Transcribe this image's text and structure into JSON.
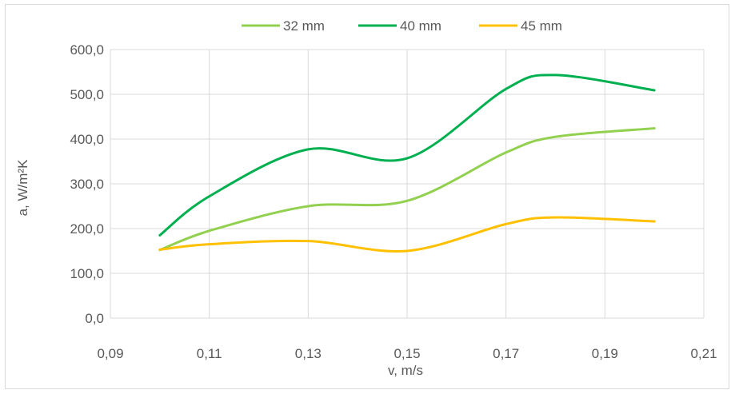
{
  "chart_data": {
    "type": "line",
    "title": "",
    "xlabel": "v, m/s",
    "ylabel": "a, W/m²K",
    "xlim": [
      0.09,
      0.21
    ],
    "ylim": [
      0,
      600
    ],
    "x_ticks": [
      "0,09",
      "0,11",
      "0,13",
      "0,15",
      "0,17",
      "0,19",
      "0,21"
    ],
    "y_ticks": [
      "0,0",
      "100,0",
      "200,0",
      "300,0",
      "400,0",
      "500,0",
      "600,0"
    ],
    "x": [
      0.1,
      0.11,
      0.13,
      0.15,
      0.17,
      0.18,
      0.2
    ],
    "series": [
      {
        "name": "32 mm",
        "color": "#92d050",
        "values": [
          152,
          195,
          250,
          262,
          370,
          405,
          424
        ]
      },
      {
        "name": "40 mm",
        "color": "#00b050",
        "values": [
          185,
          272,
          377,
          357,
          512,
          543,
          509
        ]
      },
      {
        "name": "45 mm",
        "color": "#ffc000",
        "values": [
          153,
          165,
          172,
          150,
          210,
          225,
          216
        ]
      }
    ],
    "grid": true,
    "legend_position": "top",
    "smooth": true
  }
}
